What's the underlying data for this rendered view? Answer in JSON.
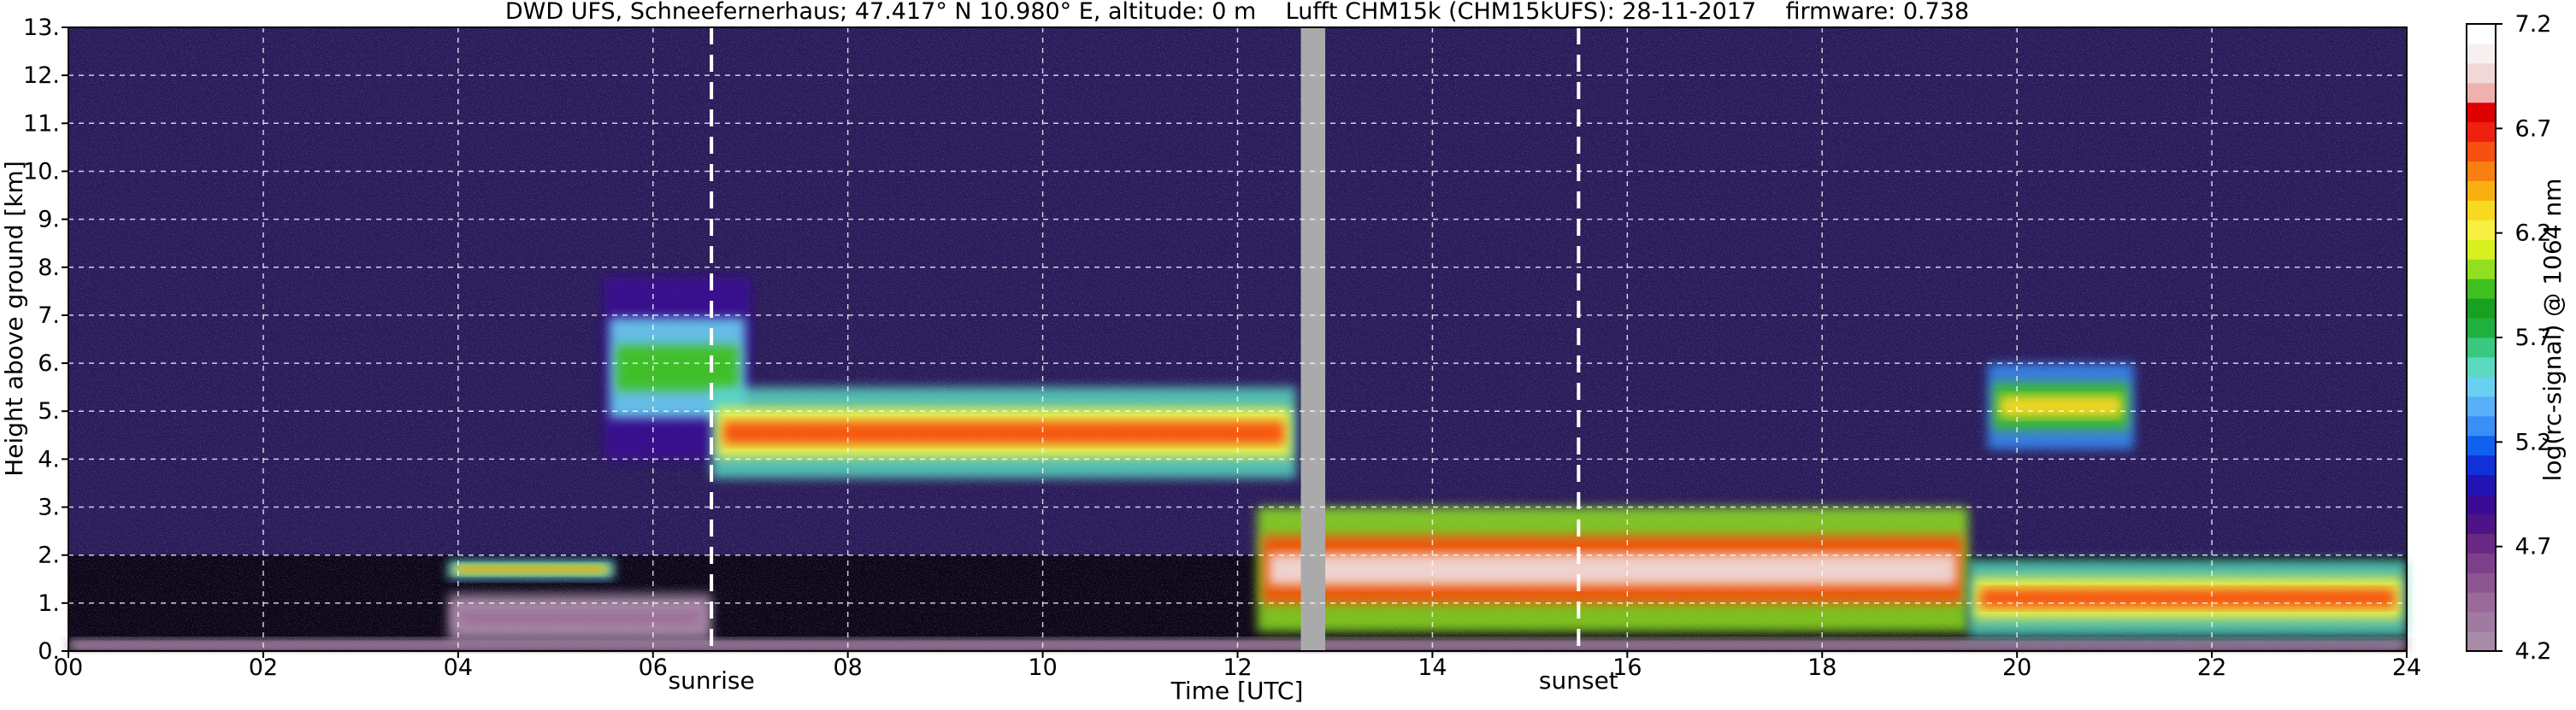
{
  "chart_data": {
    "type": "heatmap",
    "title": "DWD UFS, Schneefernerhaus; 47.417° N 10.980° E, altitude: 0 m    Lufft CHM15k (CHM15kUFS): 28-11-2017    firmware: 0.738",
    "xlabel": "Time [UTC]",
    "ylabel": "Height above ground [km]",
    "xlim": [
      0,
      24
    ],
    "ylim": [
      0,
      13
    ],
    "x_ticks": [
      "00",
      "02",
      "04",
      "06",
      "08",
      "10",
      "12",
      "14",
      "16",
      "18",
      "20",
      "22",
      "24"
    ],
    "y_ticks": [
      "0.",
      "1.",
      "2.",
      "3.",
      "4.",
      "5.",
      "6.",
      "7.",
      "8.",
      "9.",
      "10.",
      "11.",
      "12.",
      "13."
    ],
    "grid": true,
    "annotations": [
      {
        "label": "sunrise",
        "x": 6.6
      },
      {
        "label": "sunset",
        "x": 15.5
      }
    ],
    "data_gap": [
      12.65,
      12.9
    ],
    "colorbar": {
      "label": "log(rc-signal) @ 1064 nm",
      "range": [
        4.2,
        7.2
      ],
      "ticks": [
        "4.2",
        "4.7",
        "5.2",
        "5.7",
        "6.2",
        "6.7",
        "7.2"
      ],
      "colors": [
        "#a88aa8",
        "#a07aa0",
        "#9a6a9a",
        "#8e5690",
        "#7d3f8a",
        "#6a2885",
        "#4e1487",
        "#3a0a96",
        "#2014b4",
        "#1030d8",
        "#1060f0",
        "#3a8ef8",
        "#5ab0f8",
        "#6ad0f0",
        "#5ad8c0",
        "#3ac880",
        "#20b040",
        "#18a020",
        "#40c020",
        "#90e020",
        "#d8f020",
        "#f8f040",
        "#f8d820",
        "#f8b010",
        "#f88010",
        "#f85010",
        "#f02010",
        "#e00000",
        "#f0b0b0",
        "#f0d8d8",
        "#f8f0f0",
        "#ffffff"
      ]
    },
    "backscatter_features": [
      {
        "kind": "surface_layer",
        "t_start": 0.0,
        "t_end": 24.0,
        "h_bottom": 0.0,
        "h_top": 0.25,
        "intensity": 4.45
      },
      {
        "kind": "residual_layer",
        "t_start": 3.9,
        "t_end": 6.6,
        "h_bottom": 0.2,
        "h_top": 1.2,
        "intensity": 4.35
      },
      {
        "kind": "cloud_layer",
        "t_start": 3.9,
        "t_end": 5.6,
        "h_bottom": 1.5,
        "h_top": 1.9,
        "intensity": 6.5
      },
      {
        "kind": "aerosol_plume",
        "t_start": 5.5,
        "t_end": 7.0,
        "h_bottom": 4.0,
        "h_top": 7.8,
        "intensity": 5.9
      },
      {
        "kind": "aerosol_plume",
        "t_start": 6.6,
        "t_end": 12.6,
        "h_bottom": 3.6,
        "h_top": 5.5,
        "intensity": 6.6
      },
      {
        "kind": "low_cloud",
        "t_start": 12.2,
        "t_end": 19.5,
        "h_bottom": 0.4,
        "h_top": 3.0,
        "intensity": 7.0
      },
      {
        "kind": "cloud_patch",
        "t_start": 19.7,
        "t_end": 21.2,
        "h_bottom": 4.2,
        "h_top": 6.0,
        "intensity": 6.3
      },
      {
        "kind": "cloud_layer",
        "t_start": 19.5,
        "t_end": 24.0,
        "h_bottom": 0.3,
        "h_top": 1.9,
        "intensity": 6.6
      }
    ]
  }
}
